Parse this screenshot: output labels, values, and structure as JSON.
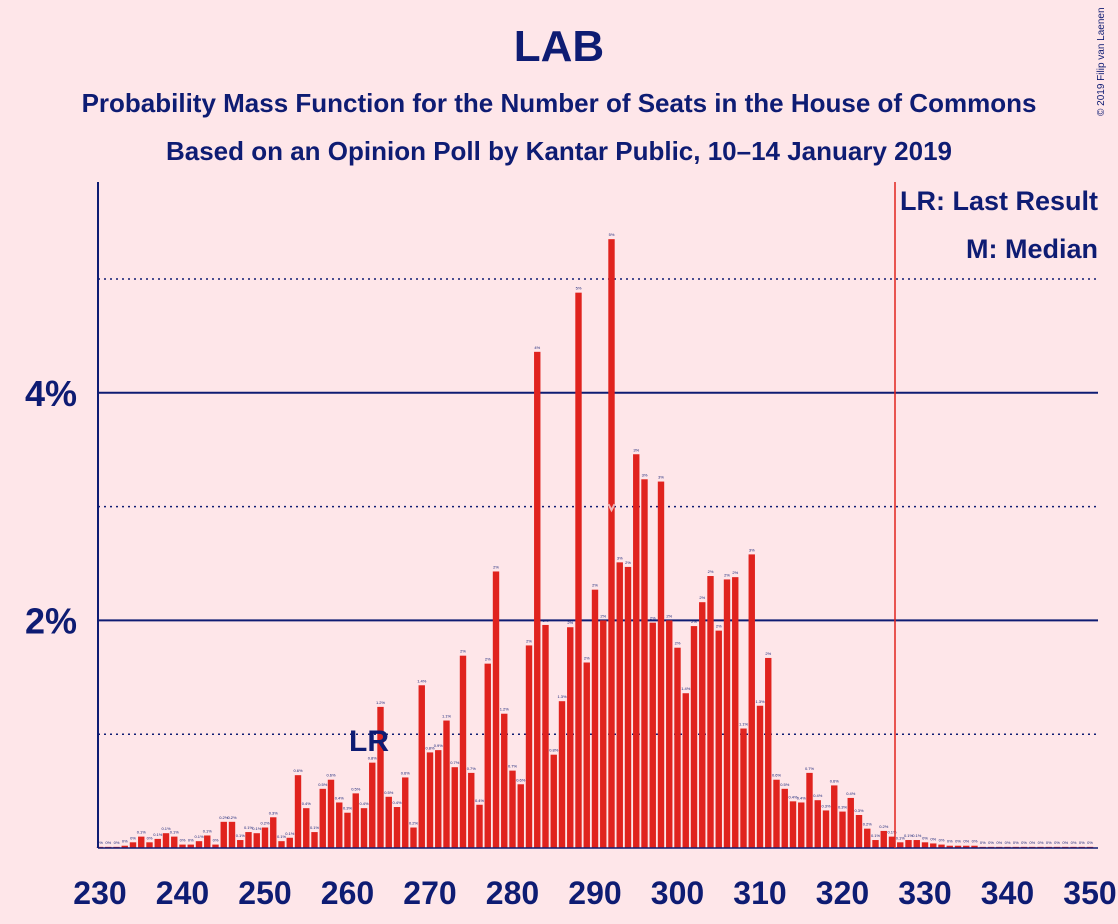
{
  "header": {
    "title": "LAB",
    "subtitle1": "Probability Mass Function for the Number of Seats in the House of Commons",
    "subtitle2": "Based on an Opinion Poll by Kantar Public, 10–14 January 2019",
    "copyright": "© 2019 Filip van Laenen"
  },
  "colors": {
    "bar": "#E0231E",
    "text": "#0E1C73",
    "background": "#FEE6E9",
    "majority_line": "#E0231E"
  },
  "chart_data": {
    "type": "bar",
    "title": "LAB",
    "xlabel": "",
    "ylabel": "",
    "xlim": [
      230,
      350
    ],
    "ylim": [
      0,
      5.8
    ],
    "x_ticks": [
      "230",
      "240",
      "250",
      "260",
      "270",
      "280",
      "290",
      "300",
      "310",
      "320",
      "330",
      "340",
      "350"
    ],
    "y_ticks": [
      "2%",
      "4%"
    ],
    "grid": "solid at 2% and 4%, dotted at 1%, 3% and 5%",
    "legend": [
      "LR: Last Result",
      "M: Median"
    ],
    "legend_position": "top-right",
    "last_result": {
      "x": 262,
      "label": "LR"
    },
    "median": {
      "x": 292,
      "label": "M"
    },
    "majority_line_x": 326,
    "x": [
      230,
      231,
      232,
      233,
      234,
      235,
      236,
      237,
      238,
      239,
      240,
      241,
      242,
      243,
      244,
      245,
      246,
      247,
      248,
      249,
      250,
      251,
      252,
      253,
      254,
      255,
      256,
      257,
      258,
      259,
      260,
      261,
      262,
      263,
      264,
      265,
      266,
      267,
      268,
      269,
      270,
      271,
      272,
      273,
      274,
      275,
      276,
      277,
      278,
      279,
      280,
      281,
      282,
      283,
      284,
      285,
      286,
      287,
      288,
      289,
      290,
      291,
      292,
      293,
      294,
      295,
      296,
      297,
      298,
      299,
      300,
      301,
      302,
      303,
      304,
      305,
      306,
      307,
      308,
      309,
      310,
      311,
      312,
      313,
      314,
      315,
      316,
      317,
      318,
      319,
      320,
      321,
      322,
      323,
      324,
      325,
      326,
      327,
      328,
      329,
      330,
      331,
      332,
      333,
      334,
      335,
      336,
      337,
      338,
      339,
      340,
      341,
      342,
      343,
      344,
      345,
      346,
      347,
      348,
      349,
      350
    ],
    "values": [
      0.01,
      0.01,
      0.01,
      0.02,
      0.05,
      0.1,
      0.05,
      0.08,
      0.13,
      0.1,
      0.03,
      0.03,
      0.06,
      0.11,
      0.03,
      0.23,
      0.23,
      0.07,
      0.14,
      0.13,
      0.18,
      0.27,
      0.06,
      0.09,
      0.64,
      0.35,
      0.14,
      0.52,
      0.6,
      0.4,
      0.31,
      0.48,
      0.35,
      0.75,
      1.24,
      0.45,
      0.36,
      0.62,
      0.18,
      1.43,
      0.84,
      0.86,
      1.12,
      0.71,
      1.69,
      0.66,
      0.38,
      1.62,
      2.43,
      1.18,
      0.68,
      0.56,
      1.78,
      4.36,
      1.96,
      0.82,
      1.29,
      1.94,
      4.88,
      1.63,
      2.27,
      2.0,
      5.35,
      2.51,
      2.47,
      3.46,
      3.24,
      1.98,
      3.22,
      2.0,
      1.76,
      1.36,
      1.95,
      2.16,
      2.39,
      1.91,
      2.36,
      2.38,
      1.05,
      2.58,
      1.25,
      1.67,
      0.6,
      0.52,
      0.41,
      0.4,
      0.66,
      0.42,
      0.33,
      0.55,
      0.32,
      0.44,
      0.29,
      0.17,
      0.07,
      0.15,
      0.1,
      0.05,
      0.07,
      0.07,
      0.05,
      0.04,
      0.03,
      0.02,
      0.02,
      0.02,
      0.02,
      0.01,
      0.01,
      0.01,
      0.01,
      0.01,
      0.01,
      0.01,
      0.01,
      0.01,
      0.01,
      0.01,
      0.01,
      0.01,
      0.01
    ],
    "labels": [
      "0%",
      "0%",
      "0%",
      "0%",
      "0%",
      "0.1%",
      "0%",
      "0.1%",
      "0.1%",
      "0.1%",
      "0%",
      "0%",
      "0.1%",
      "0.1%",
      "0%",
      "0.2%",
      "0.2%",
      "0.1%",
      "0.1%",
      "0.1%",
      "0.2%",
      "0.3%",
      "0.1%",
      "0.1%",
      "0.6%",
      "0.4%",
      "0.1%",
      "0.5%",
      "0.6%",
      "0.4%",
      "0.3%",
      "0.5%",
      "0.4%",
      "0.8%",
      "1.2%",
      "0.5%",
      "0.4%",
      "0.6%",
      "0.2%",
      "1.4%",
      "0.8%",
      "0.9%",
      "1.1%",
      "0.7%",
      "2%",
      "0.7%",
      "0.4%",
      "2%",
      "2%",
      "1.2%",
      "0.7%",
      "0.6%",
      "2%",
      "4%",
      "2%",
      "0.8%",
      "1.3%",
      "2%",
      "5%",
      "2%",
      "2%",
      "2%",
      "5%",
      "3%",
      "2%",
      "3%",
      "3%",
      "2%",
      "3%",
      "2%",
      "2%",
      "1.4%",
      "2%",
      "2%",
      "2%",
      "2%",
      "2%",
      "2%",
      "1.1%",
      "3%",
      "1.3%",
      "2%",
      "0.6%",
      "0.5%",
      "0.4%",
      "0.4%",
      "0.7%",
      "0.4%",
      "0.3%",
      "0.6%",
      "0.3%",
      "0.4%",
      "0.3%",
      "0.2%",
      "0.1%",
      "0.2%",
      "0.1%",
      "0.1%",
      "0.1%",
      "0.1%",
      "0%",
      "0%",
      "0%",
      "0%",
      "0%",
      "0%",
      "0%",
      "0%",
      "0%",
      "0%",
      "0%",
      "0%",
      "0%",
      "0%",
      "0%",
      "0%",
      "0%",
      "0%",
      "0%",
      "0%",
      "0%"
    ]
  }
}
